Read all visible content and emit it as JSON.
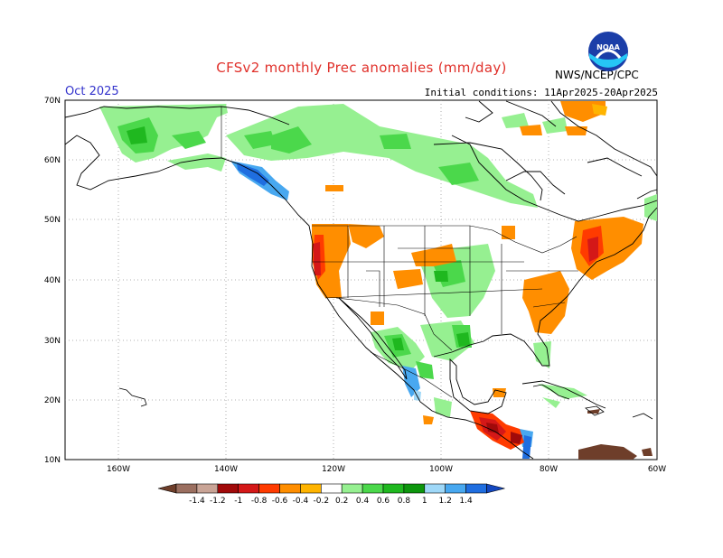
{
  "title": "CFSv2 monthly Prec anomalies (mm/day)",
  "valid_month": "Oct 2025",
  "initial_conditions": "Initial conditions: 11Apr2025-20Apr2025",
  "agency": "NWS/NCEP/CPC",
  "logo_text": "NOAA",
  "lat_labels": [
    "70N",
    "60N",
    "50N",
    "40N",
    "30N",
    "20N",
    "10N"
  ],
  "lon_labels": [
    "160W",
    "140W",
    "120W",
    "100W",
    "80W",
    "60W"
  ],
  "colorbar": {
    "labels": [
      "-1.4",
      "-1.2",
      "-1",
      "-0.8",
      "-0.6",
      "-0.4",
      "-0.2",
      "0.2",
      "0.4",
      "0.6",
      "0.8",
      "1",
      "1.2",
      "1.4"
    ],
    "colors": [
      "#6e3e2a",
      "#9b6f60",
      "#c9a496",
      "#a10a0a",
      "#d41818",
      "#ff3b00",
      "#ff8e00",
      "#ffb400",
      "#ffffff",
      "#96f091",
      "#4bd84b",
      "#1fb81f",
      "#0d960d",
      "#9fd8f8",
      "#48a8f0",
      "#1f6ee0",
      "#1347c0"
    ],
    "end_low": "#6e3e2a",
    "end_high": "#1347c0"
  },
  "map": {
    "extent_lon": [
      -170,
      -60
    ],
    "extent_lat": [
      10,
      70
    ]
  }
}
